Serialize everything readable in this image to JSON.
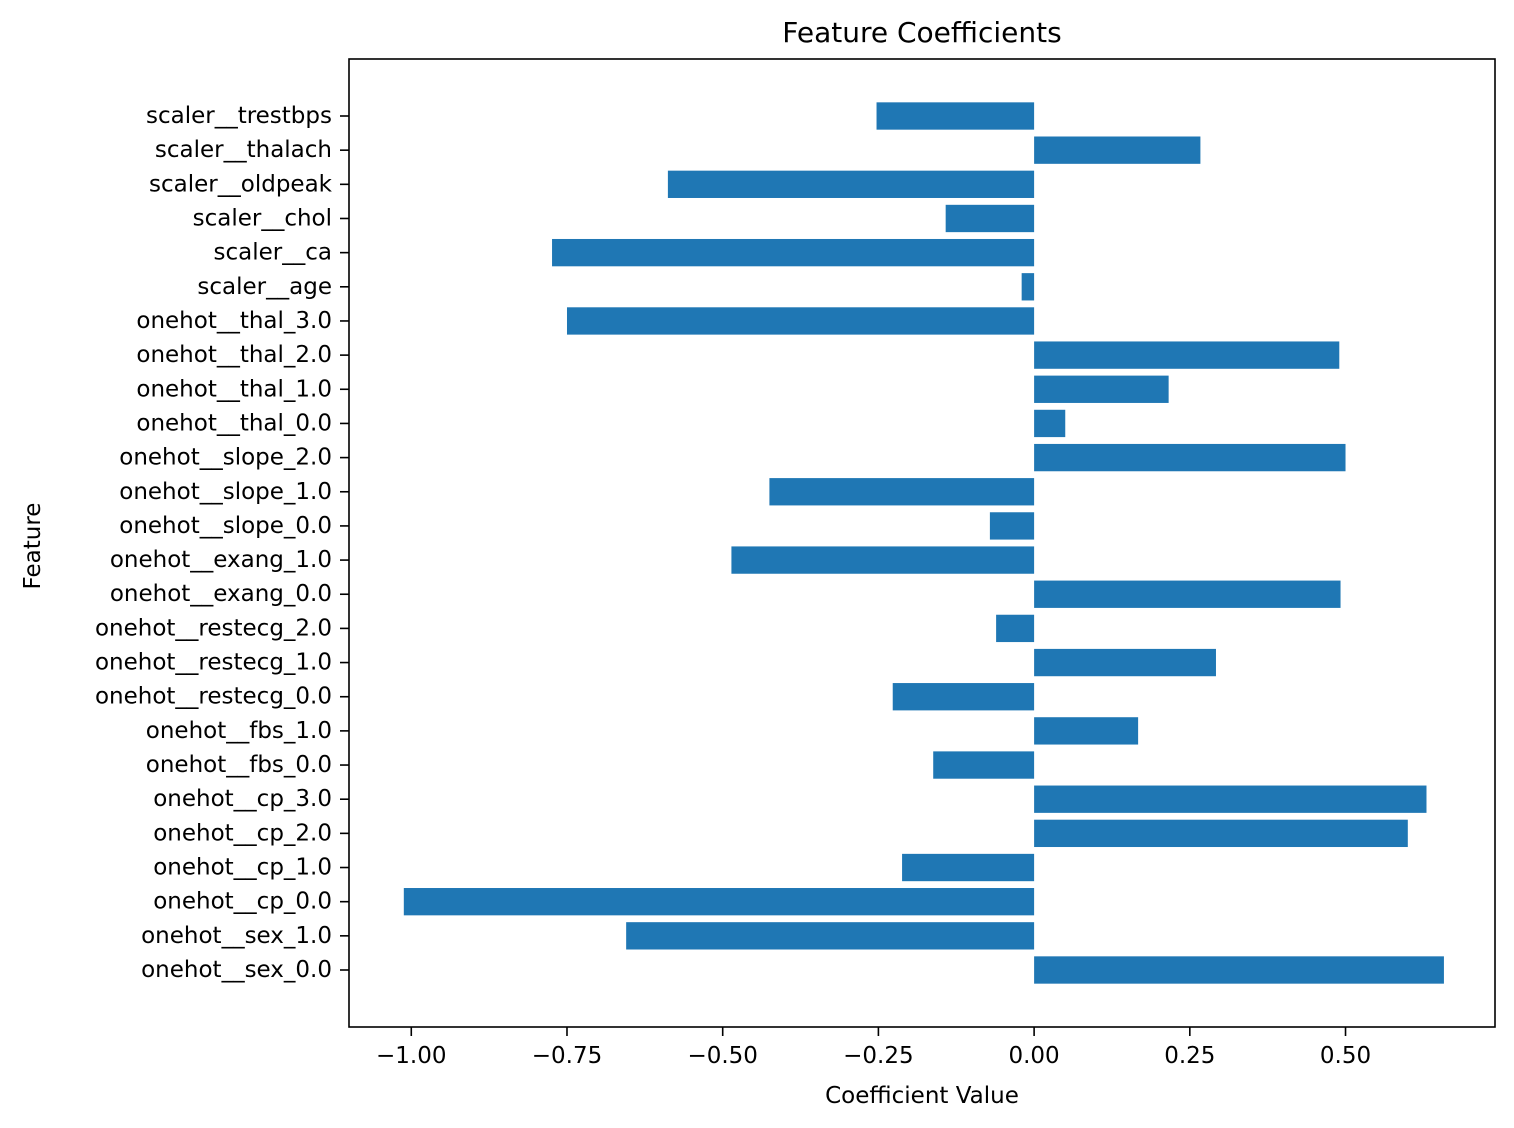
{
  "chart_data": {
    "type": "bar",
    "orientation": "horizontal",
    "title": "Feature Coefficients",
    "xlabel": "Coefficient Value",
    "ylabel": "Feature",
    "xlim": [
      -1.1,
      0.74
    ],
    "xticks": [
      -1.0,
      -0.75,
      -0.5,
      -0.25,
      0.0,
      0.25,
      0.5
    ],
    "xtick_labels": [
      "−1.00",
      "−0.75",
      "−0.50",
      "−0.25",
      "0.00",
      "0.25",
      "0.50"
    ],
    "grid": false,
    "bar_color": "#1f77b4",
    "categories": [
      "onehot__sex_0.0",
      "onehot__sex_1.0",
      "onehot__cp_0.0",
      "onehot__cp_1.0",
      "onehot__cp_2.0",
      "onehot__cp_3.0",
      "onehot__fbs_0.0",
      "onehot__fbs_1.0",
      "onehot__restecg_0.0",
      "onehot__restecg_1.0",
      "onehot__restecg_2.0",
      "onehot__exang_0.0",
      "onehot__exang_1.0",
      "onehot__slope_0.0",
      "onehot__slope_1.0",
      "onehot__slope_2.0",
      "onehot__thal_0.0",
      "onehot__thal_1.0",
      "onehot__thal_2.0",
      "onehot__thal_3.0",
      "scaler__age",
      "scaler__ca",
      "scaler__chol",
      "scaler__oldpeak",
      "scaler__thalach",
      "scaler__trestbps"
    ],
    "values": [
      0.658,
      -0.655,
      -1.012,
      -0.212,
      0.6,
      0.63,
      -0.162,
      0.167,
      -0.227,
      0.292,
      -0.061,
      0.492,
      -0.486,
      -0.071,
      -0.425,
      0.5,
      0.05,
      0.216,
      0.49,
      -0.75,
      -0.02,
      -0.774,
      -0.142,
      -0.588,
      0.267,
      -0.253
    ]
  }
}
